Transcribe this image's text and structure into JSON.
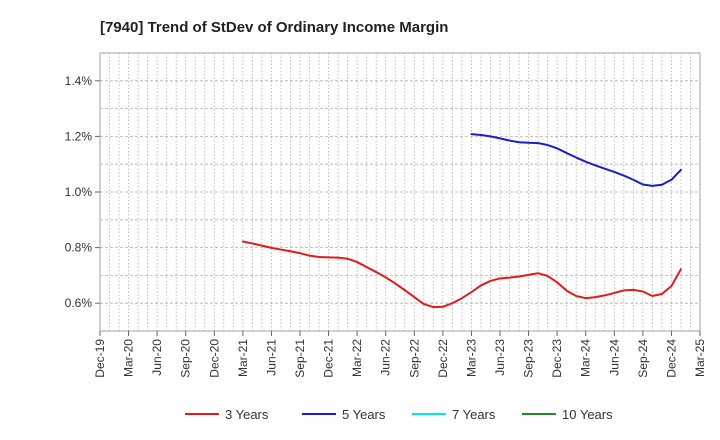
{
  "chart_data": {
    "type": "line",
    "title": "[7940]  Trend of StDev of Ordinary Income Margin",
    "xlabel": "",
    "ylabel": "",
    "x_ticks": [
      "Dec-19",
      "Mar-20",
      "Jun-20",
      "Sep-20",
      "Dec-20",
      "Mar-21",
      "Jun-21",
      "Sep-21",
      "Dec-21",
      "Mar-22",
      "Jun-22",
      "Sep-22",
      "Dec-22",
      "Mar-23",
      "Jun-23",
      "Sep-23",
      "Dec-23",
      "Mar-24",
      "Jun-24",
      "Sep-24",
      "Dec-24",
      "Mar-25"
    ],
    "y_ticks": [
      "0.6%",
      "0.8%",
      "1.0%",
      "1.2%",
      "1.4%"
    ],
    "y_tick_values": [
      0.6,
      0.8,
      1.0,
      1.2,
      1.4
    ],
    "ylim": [
      0.5,
      1.5
    ],
    "grid": true,
    "legend_position": "bottom",
    "series": [
      {
        "name": "3 Years",
        "color": "#e31a1c",
        "points": [
          [
            "Mar-21",
            0.822
          ],
          [
            "Apr-21",
            0.815
          ],
          [
            "May-21",
            0.807
          ],
          [
            "Jun-21",
            0.799
          ],
          [
            "Jul-21",
            0.793
          ],
          [
            "Aug-21",
            0.787
          ],
          [
            "Sep-21",
            0.78
          ],
          [
            "Oct-21",
            0.771
          ],
          [
            "Nov-21",
            0.766
          ],
          [
            "Dec-21",
            0.765
          ],
          [
            "Jan-22",
            0.764
          ],
          [
            "Feb-22",
            0.76
          ],
          [
            "Mar-22",
            0.748
          ],
          [
            "Apr-22",
            0.73
          ],
          [
            "May-22",
            0.712
          ],
          [
            "Jun-22",
            0.693
          ],
          [
            "Jul-22",
            0.671
          ],
          [
            "Aug-22",
            0.647
          ],
          [
            "Sep-22",
            0.622
          ],
          [
            "Oct-22",
            0.597
          ],
          [
            "Nov-22",
            0.586
          ],
          [
            "Dec-22",
            0.587
          ],
          [
            "Jan-23",
            0.6
          ],
          [
            "Feb-23",
            0.618
          ],
          [
            "Mar-23",
            0.64
          ],
          [
            "Apr-23",
            0.664
          ],
          [
            "May-23",
            0.68
          ],
          [
            "Jun-23",
            0.689
          ],
          [
            "Jul-23",
            0.692
          ],
          [
            "Aug-23",
            0.696
          ],
          [
            "Sep-23",
            0.702
          ],
          [
            "Oct-23",
            0.708
          ],
          [
            "Nov-23",
            0.698
          ],
          [
            "Dec-23",
            0.675
          ],
          [
            "Jan-24",
            0.645
          ],
          [
            "Feb-24",
            0.626
          ],
          [
            "Mar-24",
            0.618
          ],
          [
            "Apr-24",
            0.622
          ],
          [
            "May-24",
            0.628
          ],
          [
            "Jun-24",
            0.637
          ],
          [
            "Jul-24",
            0.646
          ],
          [
            "Aug-24",
            0.648
          ],
          [
            "Sep-24",
            0.642
          ],
          [
            "Oct-24",
            0.626
          ],
          [
            "Nov-24",
            0.633
          ],
          [
            "Dec-24",
            0.662
          ],
          [
            "Jan-25",
            0.722
          ]
        ]
      },
      {
        "name": "5 Years",
        "color": "#1c1cc8",
        "points": [
          [
            "Mar-23",
            1.208
          ],
          [
            "Apr-23",
            1.205
          ],
          [
            "May-23",
            1.2
          ],
          [
            "Jun-23",
            1.193
          ],
          [
            "Jul-23",
            1.185
          ],
          [
            "Aug-23",
            1.179
          ],
          [
            "Sep-23",
            1.177
          ],
          [
            "Oct-23",
            1.176
          ],
          [
            "Nov-23",
            1.169
          ],
          [
            "Dec-23",
            1.157
          ],
          [
            "Jan-24",
            1.14
          ],
          [
            "Feb-24",
            1.124
          ],
          [
            "Mar-24",
            1.109
          ],
          [
            "Apr-24",
            1.096
          ],
          [
            "May-24",
            1.084
          ],
          [
            "Jun-24",
            1.072
          ],
          [
            "Jul-24",
            1.059
          ],
          [
            "Aug-24",
            1.044
          ],
          [
            "Sep-24",
            1.027
          ],
          [
            "Oct-24",
            1.022
          ],
          [
            "Nov-24",
            1.026
          ],
          [
            "Dec-24",
            1.044
          ],
          [
            "Jan-25",
            1.08
          ]
        ]
      },
      {
        "name": "7 Years",
        "color": "#00e5ee",
        "points": []
      },
      {
        "name": "10 Years",
        "color": "#228b22",
        "points": []
      }
    ]
  }
}
